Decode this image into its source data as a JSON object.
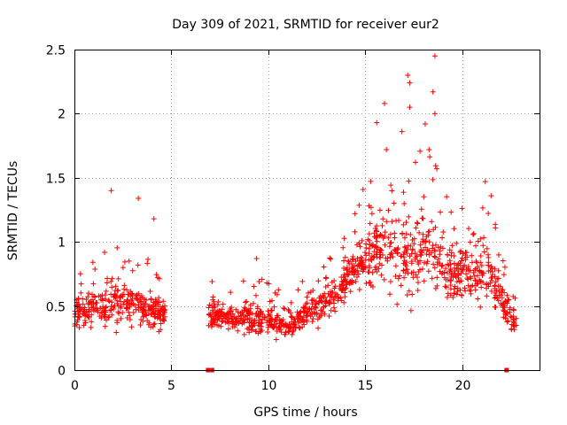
{
  "chart_data": {
    "type": "scatter",
    "title": "Day 309 of 2021, SRMTID for receiver eur2",
    "xlabel": "GPS time / hours",
    "ylabel": "SRMTID / TECUs",
    "xlim": [
      0,
      24
    ],
    "ylim": [
      0,
      2.5
    ],
    "xticks": [
      0,
      5,
      10,
      15,
      20
    ],
    "yticks": [
      0,
      0.5,
      1,
      1.5,
      2,
      2.5
    ],
    "grid": true,
    "marker": "+",
    "color": "#ff0000",
    "series": [
      {
        "name": "SRMTID",
        "profile": [
          {
            "t": 0.0,
            "mean": 0.45,
            "spread": 0.22
          },
          {
            "t": 1.0,
            "mean": 0.5,
            "spread": 0.3
          },
          {
            "t": 2.0,
            "mean": 0.52,
            "spread": 0.35
          },
          {
            "t": 3.0,
            "mean": 0.5,
            "spread": 0.35
          },
          {
            "t": 4.0,
            "mean": 0.48,
            "spread": 0.3
          },
          {
            "t": 4.7,
            "mean": 0.45,
            "spread": 0.2
          },
          {
            "t": 6.9,
            "mean": 0.45,
            "spread": 0.2
          },
          {
            "t": 8.0,
            "mean": 0.42,
            "spread": 0.2
          },
          {
            "t": 9.5,
            "mean": 0.4,
            "spread": 0.25
          },
          {
            "t": 11.0,
            "mean": 0.35,
            "spread": 0.18
          },
          {
            "t": 12.0,
            "mean": 0.45,
            "spread": 0.25
          },
          {
            "t": 13.5,
            "mean": 0.6,
            "spread": 0.25
          },
          {
            "t": 14.5,
            "mean": 0.8,
            "spread": 0.35
          },
          {
            "t": 15.5,
            "mean": 0.95,
            "spread": 0.55
          },
          {
            "t": 16.5,
            "mean": 0.95,
            "spread": 0.55
          },
          {
            "t": 17.5,
            "mean": 0.9,
            "spread": 0.65
          },
          {
            "t": 18.5,
            "mean": 0.95,
            "spread": 0.7
          },
          {
            "t": 19.5,
            "mean": 0.75,
            "spread": 0.4
          },
          {
            "t": 20.5,
            "mean": 0.75,
            "spread": 0.4
          },
          {
            "t": 21.5,
            "mean": 0.75,
            "spread": 0.45
          },
          {
            "t": 22.0,
            "mean": 0.55,
            "spread": 0.3
          },
          {
            "t": 22.8,
            "mean": 0.35,
            "spread": 0.15
          }
        ],
        "segments": [
          [
            0.0,
            4.7
          ],
          [
            6.9,
            22.8
          ]
        ],
        "point_count": 1400,
        "seed": 309,
        "peaks": [
          {
            "x": 1.9,
            "y": 1.4
          },
          {
            "x": 3.3,
            "y": 1.34
          },
          {
            "x": 4.1,
            "y": 1.18
          },
          {
            "x": 9.4,
            "y": 0.87
          },
          {
            "x": 15.6,
            "y": 1.93
          },
          {
            "x": 16.0,
            "y": 2.08
          },
          {
            "x": 16.1,
            "y": 1.72
          },
          {
            "x": 16.9,
            "y": 1.86
          },
          {
            "x": 17.2,
            "y": 2.3
          },
          {
            "x": 17.3,
            "y": 2.24
          },
          {
            "x": 17.3,
            "y": 2.05
          },
          {
            "x": 17.6,
            "y": 1.62
          },
          {
            "x": 18.1,
            "y": 1.92
          },
          {
            "x": 18.3,
            "y": 1.72
          },
          {
            "x": 18.5,
            "y": 2.17
          },
          {
            "x": 18.6,
            "y": 2.45
          },
          {
            "x": 18.6,
            "y": 2.0
          },
          {
            "x": 18.7,
            "y": 1.57
          },
          {
            "x": 21.2,
            "y": 1.47
          },
          {
            "x": 21.5,
            "y": 1.36
          }
        ],
        "zero_markers": [
          6.9,
          7.1,
          22.3
        ]
      }
    ]
  }
}
